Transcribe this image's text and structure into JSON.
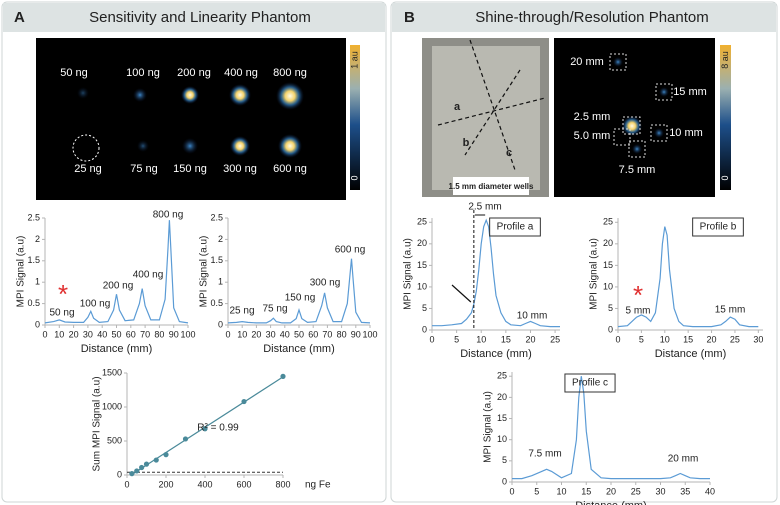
{
  "panels": {
    "A": {
      "label": "A",
      "title": "Sensitivity and Linearity Phantom",
      "image_labels": [
        "50 ng",
        "100 ng",
        "200 ng",
        "400 ng",
        "800 ng",
        "25 ng",
        "75 ng",
        "150 ng",
        "300 ng",
        "600 ng"
      ],
      "colorbar_top": "1 au",
      "colorbar_bottom": "0"
    },
    "B": {
      "label": "B",
      "title": "Shine-through/Resolution Phantom",
      "photo_labels": [
        "a",
        "b",
        "c",
        "1.5 mm diameter wells"
      ],
      "image_labels": [
        "20 mm",
        "15 mm",
        "2.5 mm",
        "5.0 mm",
        "10 mm",
        "7.5 mm"
      ],
      "colorbar_top": "8 au",
      "colorbar_bottom": "0"
    }
  },
  "chart_data": [
    {
      "type": "line",
      "x_label": "Distance (mm)",
      "y_label": "MPI Signal (a.u)",
      "x": [
        0,
        6,
        10,
        14,
        20,
        27,
        30,
        32,
        34,
        38,
        44,
        48,
        50,
        52,
        56,
        62,
        66,
        68,
        70,
        74,
        80,
        84,
        86,
        87,
        88,
        90,
        94,
        100
      ],
      "values": [
        0.05,
        0.08,
        0.12,
        0.07,
        0.06,
        0.06,
        0.18,
        0.32,
        0.16,
        0.06,
        0.08,
        0.35,
        0.72,
        0.35,
        0.1,
        0.12,
        0.5,
        0.85,
        0.45,
        0.12,
        0.12,
        0.6,
        1.8,
        2.45,
        1.8,
        0.4,
        0.08,
        0.05
      ],
      "color": "#5b9bd5",
      "xlim": [
        0,
        100
      ],
      "xticks": [
        0,
        10,
        20,
        30,
        40,
        50,
        60,
        70,
        80,
        90,
        100
      ],
      "ylim": [
        0,
        2.5
      ],
      "yticks": [
        0,
        0.5,
        1,
        1.5,
        2,
        2.5
      ],
      "annotations": [
        "50 ng",
        "100 ng",
        "200 ng",
        "400 ng",
        "800 ng"
      ]
    },
    {
      "type": "line",
      "x_label": "Distance (mm)",
      "y_label": "MPI Signal (a.u)",
      "x": [
        0,
        6,
        10,
        14,
        20,
        27,
        30,
        32,
        34,
        38,
        44,
        48,
        50,
        52,
        56,
        62,
        66,
        68,
        70,
        74,
        80,
        84,
        86,
        87,
        88,
        90,
        94,
        100
      ],
      "values": [
        0.05,
        0.06,
        0.08,
        0.06,
        0.05,
        0.05,
        0.1,
        0.16,
        0.08,
        0.05,
        0.05,
        0.15,
        0.35,
        0.15,
        0.06,
        0.08,
        0.45,
        0.75,
        0.4,
        0.08,
        0.08,
        0.5,
        1.2,
        1.55,
        1.1,
        0.3,
        0.06,
        0.05
      ],
      "color": "#5b9bd5",
      "xlim": [
        0,
        100
      ],
      "xticks": [
        0,
        10,
        20,
        30,
        40,
        50,
        60,
        70,
        80,
        90,
        100
      ],
      "ylim": [
        0,
        2.5
      ],
      "yticks": [
        0,
        0.5,
        1,
        1.5,
        2,
        2.5
      ],
      "annotations": [
        "25 ng",
        "75 ng",
        "150 ng",
        "300 ng",
        "600 ng"
      ]
    },
    {
      "type": "scatter",
      "x_label": "ng Fe",
      "y_label": "Sum MPI Signal (a.u)",
      "x": [
        25,
        50,
        75,
        100,
        150,
        200,
        300,
        400,
        600,
        800
      ],
      "values": [
        20,
        60,
        110,
        160,
        220,
        300,
        530,
        680,
        1080,
        1450
      ],
      "color": "#4a8a9a",
      "xlim": [
        0,
        800
      ],
      "xticks": [
        0,
        200,
        400,
        600,
        800
      ],
      "ylim": [
        0,
        1500
      ],
      "yticks": [
        0,
        500,
        1000,
        1500
      ],
      "reference_line": 40,
      "annotations": [
        "R² = 0.99"
      ]
    },
    {
      "type": "line",
      "x_label": "Distance (mm)",
      "y_label": "MPI Signal (a.u)",
      "x": [
        0,
        2,
        4,
        6,
        7,
        8,
        8.5,
        9,
        9.5,
        10,
        10.5,
        11,
        11.5,
        12,
        12.5,
        13,
        14,
        15,
        16,
        18,
        19,
        20,
        21,
        22,
        24,
        26
      ],
      "values": [
        1,
        1,
        1.2,
        1.5,
        2.5,
        4,
        6,
        9,
        14,
        20,
        24,
        25.5,
        24,
        19,
        13,
        8,
        4,
        2,
        1.2,
        1,
        1.5,
        2,
        1.5,
        1,
        0.8,
        0.8
      ],
      "color": "#5b9bd5",
      "xlim": [
        0,
        26
      ],
      "xticks": [
        0,
        5,
        10,
        15,
        20,
        25
      ],
      "ylim": [
        0,
        26
      ],
      "yticks": [
        0,
        5,
        10,
        15,
        20,
        25
      ],
      "reference_x": 8.5,
      "annotations": [
        "2.5 mm",
        "10 mm",
        "Profile a"
      ]
    },
    {
      "type": "line",
      "x_label": "Distance (mm)",
      "y_label": "MPI Signal (a.u)",
      "x": [
        0,
        2,
        3,
        4,
        5,
        6,
        7,
        8,
        9,
        9.5,
        10,
        10.5,
        11,
        12,
        13,
        14,
        16,
        18,
        20,
        22,
        23,
        24,
        25,
        26,
        28,
        30
      ],
      "values": [
        0.8,
        1,
        2,
        3,
        3.5,
        3,
        2,
        4,
        12,
        20,
        24,
        22,
        14,
        5,
        2,
        1,
        0.8,
        0.8,
        0.8,
        1.2,
        2,
        3,
        2.5,
        1.2,
        0.8,
        0.8
      ],
      "color": "#5b9bd5",
      "xlim": [
        0,
        31
      ],
      "xticks": [
        0,
        5,
        10,
        15,
        20,
        25,
        30
      ],
      "ylim": [
        0,
        26
      ],
      "yticks": [
        0,
        5,
        10,
        15,
        20,
        25
      ],
      "annotations": [
        "5 mm",
        "15 mm",
        "Profile b"
      ]
    },
    {
      "type": "line",
      "x_label": "Distance (mm)",
      "y_label": "MPI Signal (a.u)",
      "x": [
        0,
        2,
        4,
        6,
        7,
        8,
        10,
        12,
        13,
        13.5,
        14,
        14.5,
        15,
        16,
        18,
        20,
        25,
        30,
        32,
        33,
        34,
        35,
        36,
        38,
        40
      ],
      "values": [
        0.8,
        0.8,
        1.5,
        2.5,
        3,
        2.5,
        1,
        2,
        10,
        20,
        25,
        21,
        12,
        3,
        1,
        0.8,
        0.8,
        0.8,
        1,
        1.5,
        2,
        1.5,
        1,
        0.8,
        0.8
      ],
      "color": "#5b9bd5",
      "xlim": [
        0,
        40
      ],
      "xticks": [
        0,
        5,
        10,
        15,
        20,
        25,
        30,
        35,
        40
      ],
      "ylim": [
        0,
        26
      ],
      "yticks": [
        0,
        5,
        10,
        15,
        20,
        25
      ],
      "annotations": [
        "7.5 mm",
        "20 mm",
        "Profile c"
      ]
    }
  ]
}
